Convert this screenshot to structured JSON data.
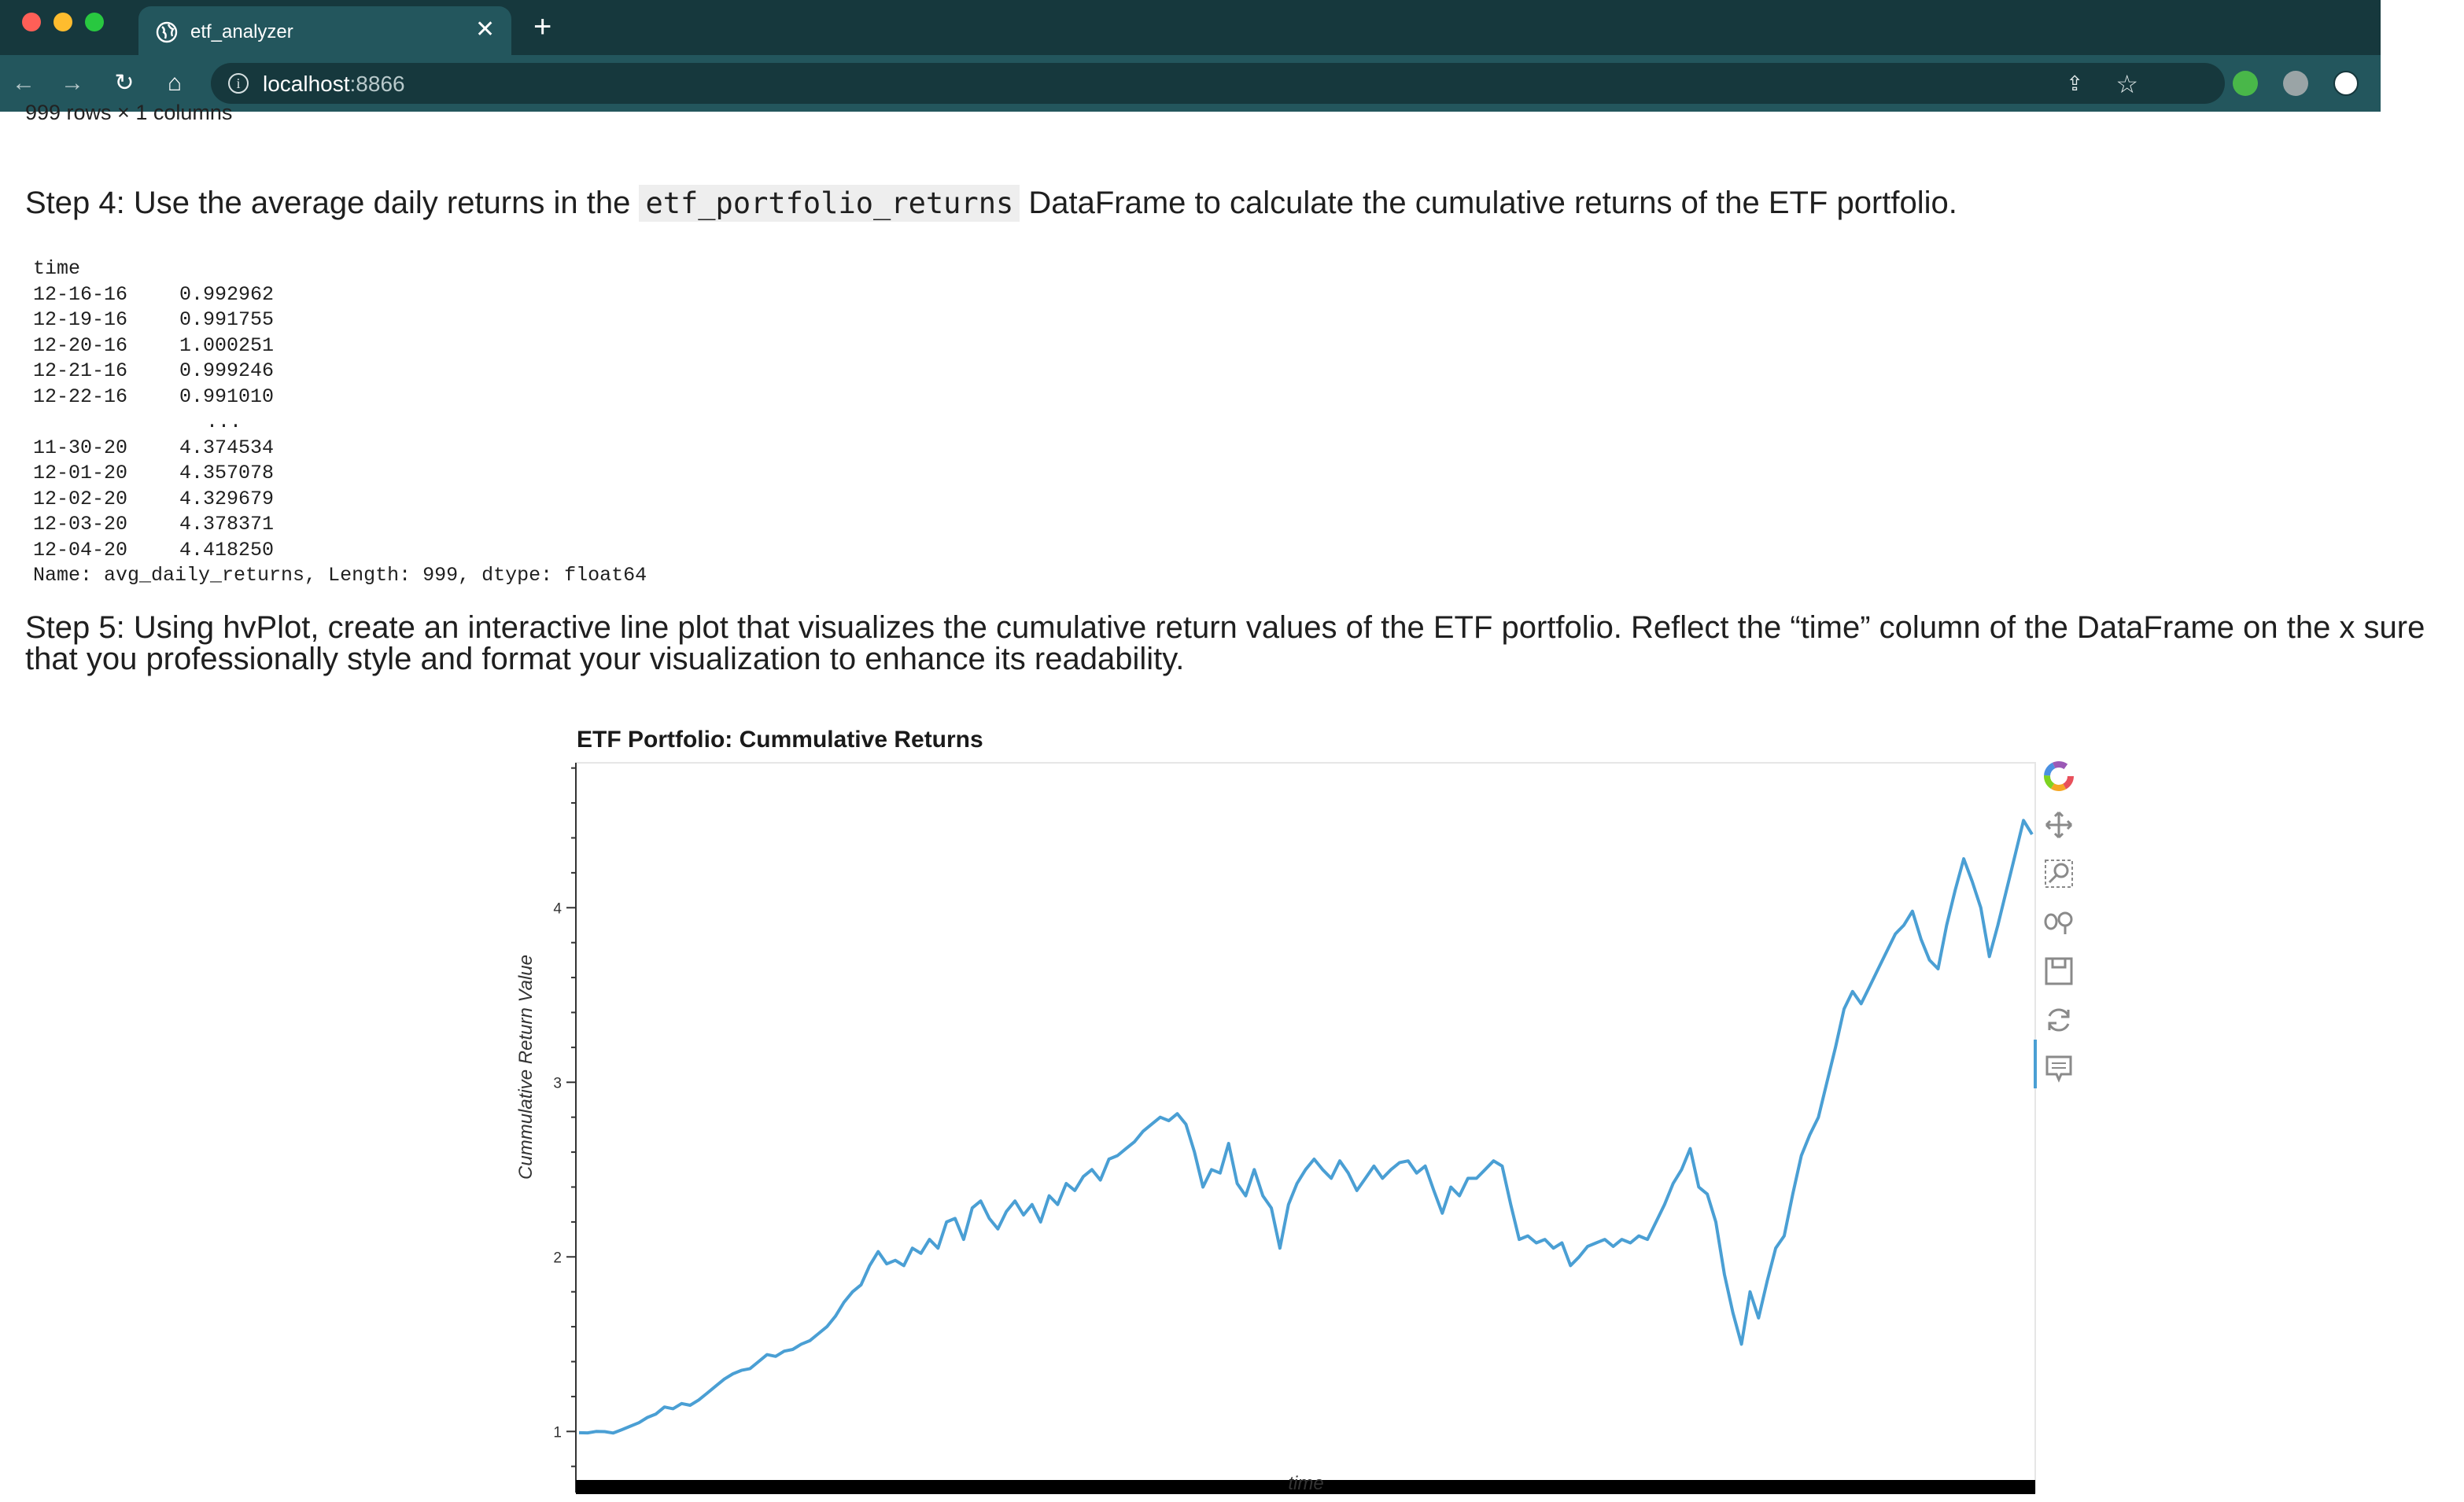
{
  "browser": {
    "tab_title": "etf_analyzer",
    "url_host": "localhost",
    "url_port": ":8866"
  },
  "notebook": {
    "row_count_text": "999 rows × 1 columns",
    "step4": {
      "prefix": "Step 4: Use the average daily returns in the ",
      "code": "etf_portfolio_returns",
      "suffix": " DataFrame to calculate the cumulative returns of the ETF portfolio."
    },
    "output": {
      "index_name": "time",
      "head_rows": [
        {
          "date": "12-16-16",
          "value": "0.992962"
        },
        {
          "date": "12-19-16",
          "value": "0.991755"
        },
        {
          "date": "12-20-16",
          "value": "1.000251"
        },
        {
          "date": "12-21-16",
          "value": "0.999246"
        },
        {
          "date": "12-22-16",
          "value": "0.991010"
        }
      ],
      "ellipsis": "...",
      "tail_rows": [
        {
          "date": "11-30-20",
          "value": "4.374534"
        },
        {
          "date": "12-01-20",
          "value": "4.357078"
        },
        {
          "date": "12-02-20",
          "value": "4.329679"
        },
        {
          "date": "12-03-20",
          "value": "4.378371"
        },
        {
          "date": "12-04-20",
          "value": "4.418250"
        }
      ],
      "footer": "Name: avg_daily_returns, Length: 999, dtype: float64"
    },
    "step5": "Step 5: Using hvPlot, create an interactive line plot that visualizes the cumulative return values of the ETF portfolio. Reflect the “time” column of the DataFrame on the x sure that you professionally style and format your visualization to enhance its readability."
  },
  "chart_data": {
    "type": "line",
    "title": "ETF Portfolio: Cummulative Returns",
    "xlabel": "time",
    "ylabel": "Cummulative Return Value",
    "ylim": [
      0.65,
      4.83
    ],
    "yticks": [
      1,
      2,
      3,
      4
    ],
    "line_color": "#4a9fd4",
    "series": [
      {
        "values": [
          0.993,
          0.992,
          1.0,
          0.999,
          0.991,
          1.01,
          1.03,
          1.05,
          1.08,
          1.1,
          1.14,
          1.13,
          1.16,
          1.15,
          1.18,
          1.22,
          1.26,
          1.3,
          1.33,
          1.35,
          1.36,
          1.4,
          1.44,
          1.43,
          1.46,
          1.47,
          1.5,
          1.52,
          1.56,
          1.6,
          1.66,
          1.74,
          1.8,
          1.84,
          1.95,
          2.03,
          1.96,
          1.98,
          1.95,
          2.05,
          2.02,
          2.1,
          2.05,
          2.2,
          2.22,
          2.1,
          2.28,
          2.32,
          2.22,
          2.16,
          2.26,
          2.32,
          2.24,
          2.3,
          2.2,
          2.35,
          2.3,
          2.42,
          2.38,
          2.46,
          2.5,
          2.44,
          2.56,
          2.58,
          2.62,
          2.66,
          2.72,
          2.76,
          2.8,
          2.78,
          2.82,
          2.76,
          2.6,
          2.4,
          2.5,
          2.48,
          2.65,
          2.42,
          2.35,
          2.5,
          2.35,
          2.28,
          2.05,
          2.3,
          2.42,
          2.5,
          2.56,
          2.5,
          2.45,
          2.55,
          2.48,
          2.38,
          2.45,
          2.52,
          2.45,
          2.5,
          2.54,
          2.55,
          2.48,
          2.52,
          2.38,
          2.25,
          2.4,
          2.35,
          2.45,
          2.45,
          2.5,
          2.55,
          2.52,
          2.3,
          2.1,
          2.12,
          2.08,
          2.1,
          2.05,
          2.08,
          1.95,
          2.0,
          2.06,
          2.08,
          2.1,
          2.06,
          2.1,
          2.08,
          2.12,
          2.1,
          2.2,
          2.3,
          2.42,
          2.5,
          2.62,
          2.4,
          2.36,
          2.2,
          1.9,
          1.68,
          1.5,
          1.8,
          1.65,
          1.86,
          2.05,
          2.12,
          2.36,
          2.58,
          2.7,
          2.8,
          3.0,
          3.2,
          3.42,
          3.52,
          3.45,
          3.55,
          3.65,
          3.75,
          3.85,
          3.9,
          3.98,
          3.82,
          3.7,
          3.65,
          3.9,
          4.1,
          4.28,
          4.15,
          4.0,
          3.72,
          3.9,
          4.1,
          4.3,
          4.5,
          4.42
        ]
      }
    ]
  }
}
